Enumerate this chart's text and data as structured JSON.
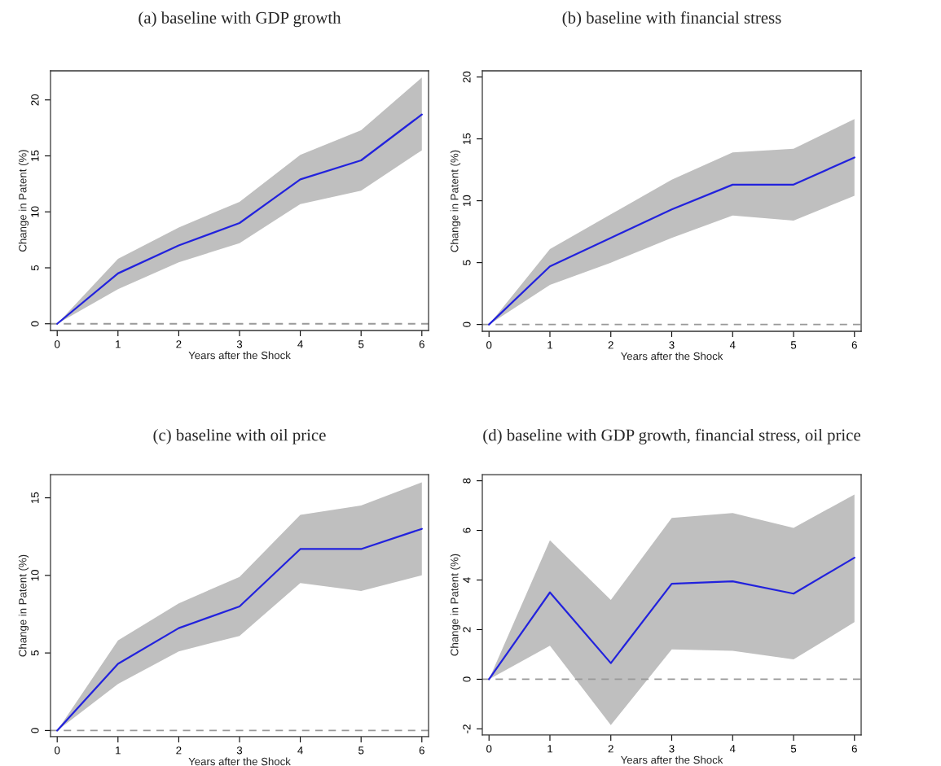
{
  "chart_data": [
    {
      "type": "line",
      "title": "(a) baseline with GDP growth",
      "xlabel": "Years after the Shock",
      "ylabel": "Change in Patent (%)",
      "x": [
        0,
        1,
        2,
        3,
        4,
        5,
        6
      ],
      "xlim": [
        -0.11,
        6.11
      ],
      "xticks": [
        0,
        1,
        2,
        3,
        4,
        5,
        6
      ],
      "ylim": [
        -0.6,
        22.6
      ],
      "yticks": [
        0,
        5,
        10,
        15,
        20
      ],
      "grid": false,
      "legend": false,
      "series": [
        {
          "color": "#2222dd",
          "values": [
            0,
            4.5,
            7.0,
            9.0,
            12.9,
            14.6,
            18.7
          ],
          "lower": [
            0,
            3.1,
            5.5,
            7.2,
            10.7,
            11.9,
            15.5
          ],
          "upper": [
            0,
            5.8,
            8.6,
            10.9,
            15.1,
            17.3,
            22.0
          ]
        }
      ],
      "ref_lines": [
        {
          "axis": "y",
          "value": 0,
          "color": "#999999",
          "line_style": "dashed"
        }
      ]
    },
    {
      "type": "line",
      "title": "(b) baseline with financial stress",
      "xlabel": "Years after the Shock",
      "ylabel": "Change in Patent (%)",
      "xlim": [
        -0.11,
        6.11
      ],
      "xticks": [
        0,
        1,
        2,
        3,
        4,
        5,
        6
      ],
      "x": [
        0,
        1,
        2,
        3,
        4,
        5,
        6
      ],
      "ylim": [
        -0.55,
        20.5
      ],
      "yticks": [
        0,
        5,
        10,
        15,
        20
      ],
      "grid": false,
      "legend": false,
      "series": [
        {
          "color": "#2222dd",
          "values": [
            0,
            4.7,
            7.0,
            9.3,
            11.3,
            11.3,
            13.5
          ],
          "lower": [
            0,
            3.2,
            5.0,
            7.0,
            8.8,
            8.4,
            10.4
          ],
          "upper": [
            0,
            6.1,
            8.9,
            11.7,
            13.9,
            14.2,
            16.6
          ]
        }
      ],
      "ref_lines": [
        {
          "axis": "y",
          "value": 0,
          "color": "#999999",
          "line_style": "dashed"
        }
      ]
    },
    {
      "type": "line",
      "title": "(c) baseline with oil price",
      "xlabel": "Years after the Shock",
      "ylabel": "Change in Patent (%)",
      "x": [
        0,
        1,
        2,
        3,
        4,
        5,
        6
      ],
      "xlim": [
        -0.11,
        6.11
      ],
      "xticks": [
        0,
        1,
        2,
        3,
        4,
        5,
        6
      ],
      "ylim": [
        -0.4,
        16.5
      ],
      "yticks": [
        0,
        5,
        10,
        15
      ],
      "grid": false,
      "legend": false,
      "series": [
        {
          "color": "#2222dd",
          "values": [
            0,
            4.3,
            6.6,
            8.0,
            11.7,
            11.7,
            13.0
          ],
          "lower": [
            0,
            3.0,
            5.1,
            6.1,
            9.5,
            9.0,
            10.0
          ],
          "upper": [
            0,
            5.8,
            8.2,
            9.9,
            13.9,
            14.5,
            16.0
          ]
        }
      ],
      "ref_lines": [
        {
          "axis": "y",
          "value": 0,
          "color": "#999999",
          "line_style": "dashed"
        }
      ]
    },
    {
      "type": "line",
      "title": "(d) baseline with GDP growth, financial stress, oil price",
      "xlabel": "Years after the Shock",
      "ylabel": "Change in Patent (%)",
      "x": [
        0,
        1,
        2,
        3,
        4,
        5,
        6
      ],
      "xlim": [
        -0.11,
        6.11
      ],
      "xticks": [
        0,
        1,
        2,
        3,
        4,
        5,
        6
      ],
      "ylim": [
        -2.25,
        8.25
      ],
      "yticks": [
        -2,
        0,
        2,
        4,
        6,
        8
      ],
      "grid": false,
      "legend": false,
      "series": [
        {
          "color": "#2222dd",
          "values": [
            0,
            3.5,
            0.65,
            3.85,
            3.95,
            3.45,
            4.9
          ],
          "lower": [
            0,
            1.35,
            -1.85,
            1.2,
            1.15,
            0.8,
            2.3
          ],
          "upper": [
            0,
            5.6,
            3.2,
            6.5,
            6.7,
            6.1,
            7.45
          ]
        }
      ],
      "ref_lines": [
        {
          "axis": "y",
          "value": 0,
          "color": "#999999",
          "line_style": "dashed"
        }
      ]
    }
  ]
}
